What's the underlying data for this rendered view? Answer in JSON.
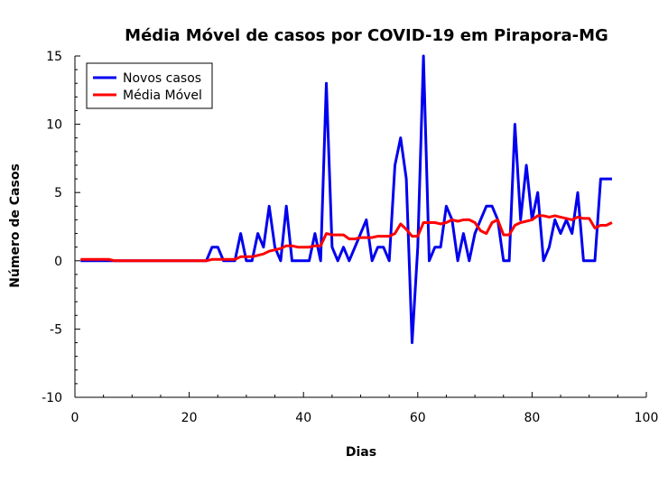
{
  "chart_data": {
    "type": "line",
    "title": "Média Móvel de casos por COVID-19 em Pirapora-MG",
    "xlabel": "Dias",
    "ylabel": "Número de Casos",
    "xlim": [
      0,
      100
    ],
    "ylim": [
      -10,
      15
    ],
    "xticks": [
      0,
      20,
      40,
      60,
      80,
      100
    ],
    "yticks": [
      -10,
      -5,
      0,
      5,
      10,
      15
    ],
    "grid": false,
    "legend_position": "top-left",
    "series": [
      {
        "name": "Novos casos",
        "color": "#0000ee",
        "x": [
          1,
          2,
          3,
          4,
          5,
          6,
          7,
          8,
          9,
          10,
          11,
          12,
          13,
          14,
          15,
          16,
          17,
          18,
          19,
          20,
          21,
          22,
          23,
          24,
          25,
          26,
          27,
          28,
          29,
          30,
          31,
          32,
          33,
          34,
          35,
          36,
          37,
          38,
          39,
          40,
          41,
          42,
          43,
          44,
          45,
          46,
          47,
          48,
          49,
          50,
          51,
          52,
          53,
          54,
          55,
          56,
          57,
          58,
          59,
          60,
          61,
          62,
          63,
          64,
          65,
          66,
          67,
          68,
          69,
          70,
          71,
          72,
          73,
          74,
          75,
          76,
          77,
          78,
          79,
          80,
          81,
          82,
          83,
          84,
          85,
          86,
          87,
          88,
          89,
          90,
          91,
          92,
          93,
          94
        ],
        "y": [
          0,
          0,
          0,
          0,
          0,
          0,
          0,
          0,
          0,
          0,
          0,
          0,
          0,
          0,
          0,
          0,
          0,
          0,
          0,
          0,
          0,
          0,
          0,
          1,
          1,
          0,
          0,
          0,
          2,
          0,
          0,
          2,
          1,
          4,
          1,
          0,
          4,
          0,
          0,
          0,
          0,
          2,
          0,
          13,
          1,
          0,
          1,
          0,
          1,
          2,
          3,
          0,
          1,
          1,
          0,
          7,
          9,
          6,
          -6,
          1,
          15,
          0,
          1,
          1,
          4,
          3,
          0,
          2,
          0,
          2,
          3,
          4,
          4,
          3,
          0,
          0,
          10,
          3,
          7,
          3,
          5,
          0,
          1,
          3,
          2,
          3,
          2,
          5,
          0,
          0,
          0,
          6,
          6,
          6
        ]
      },
      {
        "name": "Média Móvel",
        "color": "#ff0000",
        "x": [
          1,
          2,
          3,
          4,
          5,
          6,
          7,
          8,
          9,
          10,
          11,
          12,
          13,
          14,
          15,
          16,
          17,
          18,
          19,
          20,
          21,
          22,
          23,
          24,
          25,
          26,
          27,
          28,
          29,
          30,
          31,
          32,
          33,
          34,
          35,
          36,
          37,
          38,
          39,
          40,
          41,
          42,
          43,
          44,
          45,
          46,
          47,
          48,
          49,
          50,
          51,
          52,
          53,
          54,
          55,
          56,
          57,
          58,
          59,
          60,
          61,
          62,
          63,
          64,
          65,
          66,
          67,
          68,
          69,
          70,
          71,
          72,
          73,
          74,
          75,
          76,
          77,
          78,
          79,
          80,
          81,
          82,
          83,
          84,
          85,
          86,
          87,
          88,
          89,
          90,
          91,
          92,
          93,
          94
        ],
        "y": [
          0.1,
          0.1,
          0.1,
          0.1,
          0.1,
          0.1,
          0,
          0,
          0,
          0,
          0,
          0,
          0,
          0,
          0,
          0,
          0,
          0,
          0,
          0,
          0,
          0,
          0,
          0.1,
          0.1,
          0.1,
          0.1,
          0.1,
          0.3,
          0.3,
          0.3,
          0.4,
          0.5,
          0.7,
          0.8,
          0.9,
          1.1,
          1.1,
          1.0,
          1.0,
          1.0,
          1.1,
          1.1,
          2.0,
          1.9,
          1.9,
          1.9,
          1.6,
          1.6,
          1.7,
          1.7,
          1.7,
          1.8,
          1.8,
          1.8,
          2.0,
          2.7,
          2.3,
          1.8,
          1.8,
          2.8,
          2.8,
          2.8,
          2.7,
          2.8,
          3.0,
          2.9,
          3.0,
          3.0,
          2.8,
          2.2,
          2.0,
          2.8,
          3.0,
          1.9,
          1.9,
          2.6,
          2.8,
          2.9,
          3.0,
          3.3,
          3.3,
          3.2,
          3.3,
          3.2,
          3.1,
          3.0,
          3.2,
          3.1,
          3.1,
          2.4,
          2.6,
          2.6,
          2.8
        ]
      }
    ]
  }
}
